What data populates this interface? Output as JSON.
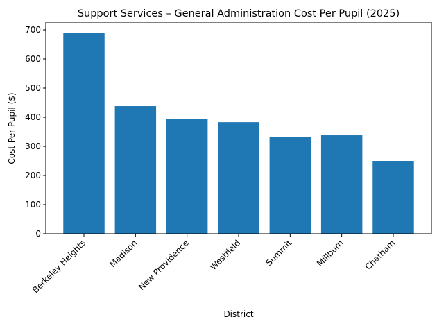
{
  "chart_data": {
    "type": "bar",
    "title": "Support Services – General Administration Cost Per Pupil (2025)",
    "xlabel": "District",
    "ylabel": "Cost Per Pupil ($)",
    "categories": [
      "Berkeley Heights",
      "Madison",
      "New Providence",
      "Westfield",
      "Summit",
      "Millburn",
      "Chatham"
    ],
    "values": [
      690,
      438,
      393,
      383,
      333,
      338,
      250
    ],
    "ylim": [
      0,
      725
    ],
    "yticks": [
      0,
      100,
      200,
      300,
      400,
      500,
      600,
      700
    ],
    "grid": false,
    "bar_color": "#1f77b4"
  }
}
